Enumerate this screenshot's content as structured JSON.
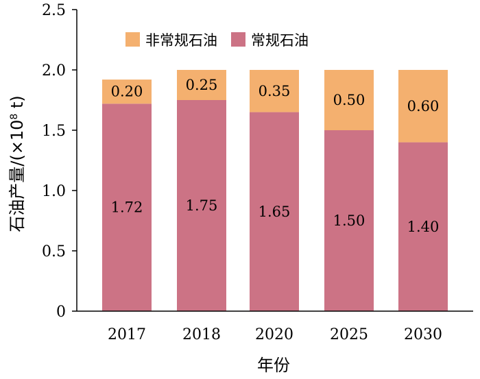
{
  "chart_data": {
    "type": "bar",
    "stacked": true,
    "categories": [
      "2017",
      "2018",
      "2020",
      "2025",
      "2030"
    ],
    "series": [
      {
        "name": "常规石油",
        "values": [
          1.72,
          1.75,
          1.65,
          1.5,
          1.4
        ],
        "color": "#cc7385"
      },
      {
        "name": "非常规石油",
        "values": [
          0.2,
          0.25,
          0.35,
          0.5,
          0.6
        ],
        "color": "#f4b06f"
      }
    ],
    "data_labels": {
      "常规石油": [
        "1.72",
        "1.75",
        "1.65",
        "1.50",
        "1.40"
      ],
      "非常规石油": [
        "0.20",
        "0.25",
        "0.35",
        "0.50",
        "0.60"
      ]
    },
    "legend_order": [
      "非常规石油",
      "常规石油"
    ],
    "legend_position": "top",
    "xlabel": "年份",
    "ylabel_main": "石油产量/(×10",
    "ylabel_sup": "8",
    "ylabel_end": " t)",
    "ylim": [
      0,
      2.5
    ],
    "yticks": [
      0,
      0.5,
      1.0,
      1.5,
      2.0,
      2.5
    ],
    "ytick_labels": [
      "0",
      "0.5",
      "1.0",
      "1.5",
      "2.0",
      "2.5"
    ],
    "grid": false
  }
}
